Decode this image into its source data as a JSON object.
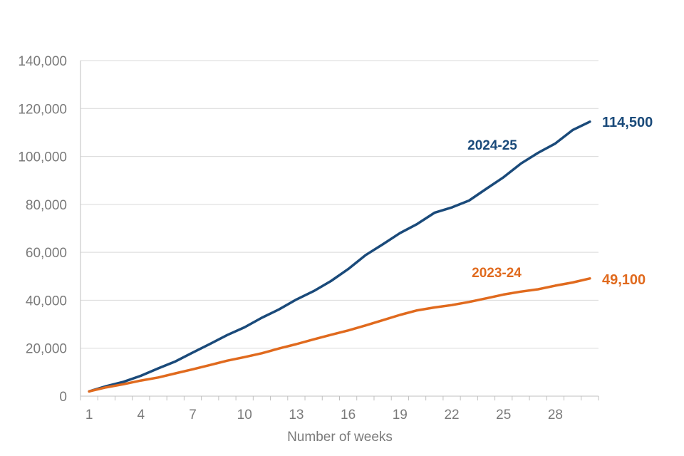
{
  "chart_data": {
    "type": "line",
    "title": "",
    "xlabel": "Number of weeks",
    "ylabel": "",
    "x": [
      1,
      2,
      3,
      4,
      5,
      6,
      7,
      8,
      9,
      10,
      11,
      12,
      13,
      14,
      15,
      16,
      17,
      18,
      19,
      20,
      21,
      22,
      23,
      24,
      25,
      26,
      27,
      28,
      29,
      30
    ],
    "x_ticks": [
      "1",
      "4",
      "7",
      "10",
      "13",
      "16",
      "19",
      "22",
      "25",
      "28"
    ],
    "y_ticks": [
      "0",
      "20,000",
      "40,000",
      "60,000",
      "80,000",
      "100,000",
      "120,000",
      "140,000"
    ],
    "ylim": [
      0,
      140000
    ],
    "xlim": [
      0.5,
      30.5
    ],
    "grid": "horizontal",
    "series": [
      {
        "name": "2024-25",
        "color": "#1a4a7a",
        "end_label": "114,500",
        "values": [
          2000,
          4200,
          6000,
          8500,
          11600,
          14500,
          18200,
          21800,
          25500,
          28700,
          32700,
          36200,
          40300,
          43800,
          48000,
          53000,
          58800,
          63300,
          68000,
          71800,
          76500,
          78700,
          81600,
          86500,
          91300,
          97000,
          101500,
          105400,
          111000,
          114500
        ]
      },
      {
        "name": "2023-24",
        "color": "#e06a1e",
        "end_label": "49,100",
        "values": [
          2000,
          3700,
          5000,
          6500,
          7800,
          9500,
          11200,
          13000,
          14800,
          16300,
          17900,
          19900,
          21700,
          23700,
          25600,
          27400,
          29500,
          31700,
          33900,
          35800,
          37000,
          38000,
          39300,
          40800,
          42400,
          43600,
          44600,
          46100,
          47400,
          49100
        ]
      }
    ]
  }
}
